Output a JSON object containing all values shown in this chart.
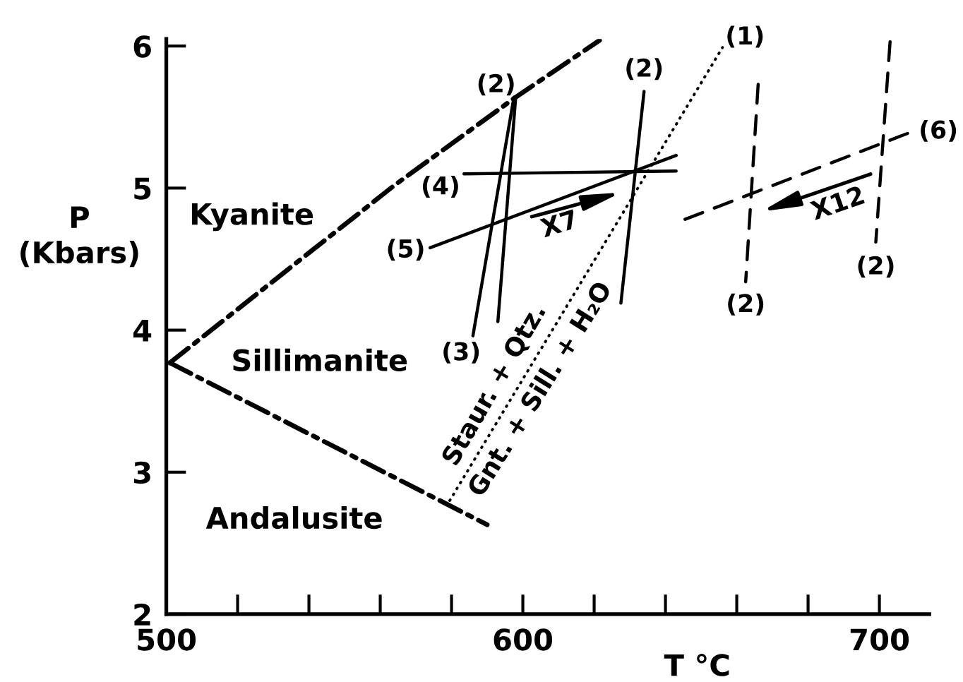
{
  "chart_data": {
    "type": "line",
    "xlabel": "T °C",
    "ylabel": "P\n(Kbars)",
    "xlim": [
      500,
      714
    ],
    "ylim": [
      2,
      6.05
    ],
    "xticks": [
      500,
      {
        "value": 520,
        "label": null
      },
      {
        "value": 540,
        "label": null
      },
      {
        "value": 560,
        "label": null
      },
      {
        "value": 580,
        "label": null
      },
      600,
      {
        "value": 620,
        "label": null
      },
      {
        "value": 640,
        "label": null
      },
      {
        "value": 660,
        "label": null
      },
      {
        "value": 680,
        "label": null
      },
      700
    ],
    "yticks": [
      2,
      3,
      4,
      5,
      6
    ],
    "series": [
      {
        "color": "#000000",
        "line_style": "dashdot",
        "x": [
          501,
          564,
          598,
          621.5
        ],
        "values": [
          3.77,
          5.02,
          5.64,
          6.04
        ]
      },
      {
        "color": "#000000",
        "line_style": "dashdot",
        "x": [
          501,
          590
        ],
        "values": [
          3.77,
          2.63
        ]
      },
      {
        "name": "(1)",
        "color": "#000000",
        "line_style": "dotted",
        "x": [
          579.5,
          656
        ],
        "values": [
          2.8,
          5.99
        ]
      },
      {
        "name": "(2)",
        "color": "#000000",
        "line_style": "solid",
        "x": [
          598,
          593
        ],
        "values": [
          5.64,
          4.06
        ]
      },
      {
        "name": "(3)",
        "color": "#000000",
        "line_style": "solid",
        "x": [
          597.5,
          586
        ],
        "values": [
          5.64,
          3.96
        ]
      },
      {
        "name": "(4)",
        "color": "#000000",
        "line_style": "solid",
        "x": [
          583.5,
          643
        ],
        "values": [
          5.1,
          5.12
        ]
      },
      {
        "name": "(5)",
        "color": "#000000",
        "line_style": "solid",
        "x": [
          574,
          643
        ],
        "values": [
          4.58,
          5.23
        ]
      },
      {
        "name": "(2)",
        "color": "#000000",
        "line_style": "solid",
        "x": [
          634,
          627.5
        ],
        "values": [
          5.68,
          4.19
        ]
      },
      {
        "name": "(6)",
        "color": "#000000",
        "line_style": "dashed",
        "x": [
          645.5,
          710.5
        ],
        "values": [
          4.78,
          5.41
        ]
      },
      {
        "name": "(2)",
        "color": "#000000",
        "line_style": "dashed",
        "x": [
          666,
          662.5
        ],
        "values": [
          5.73,
          4.34
        ]
      },
      {
        "name": "(2)",
        "color": "#000000",
        "line_style": "dashed",
        "x": [
          703,
          699
        ],
        "values": [
          6.03,
          4.62
        ]
      }
    ],
    "annotations": [
      "Kyanite",
      "Sillimanite",
      "Andalusite",
      "Staur. + Qtz.",
      "Gnt. + Sill. + H₂O",
      "X7",
      "X12"
    ]
  }
}
